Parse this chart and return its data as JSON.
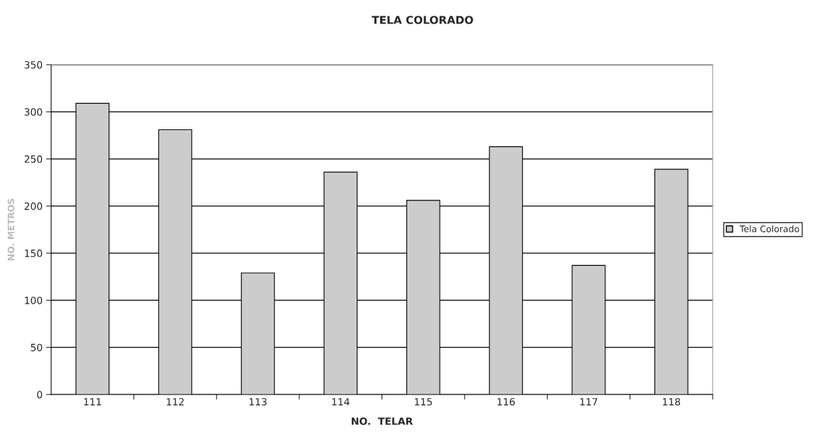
{
  "chart_data": {
    "type": "bar",
    "title": "TELA COLORADO",
    "xlabel": "NO.  TELAR",
    "ylabel": "NO. METROS",
    "categories": [
      "111",
      "112",
      "113",
      "114",
      "115",
      "116",
      "117",
      "118"
    ],
    "series": [
      {
        "name": "Tela Colorado",
        "color": "#cccccc",
        "values": [
          309,
          281,
          129,
          236,
          206,
          263,
          137,
          239
        ]
      }
    ],
    "ylim": [
      0,
      350
    ],
    "yticks": [
      0,
      50,
      100,
      150,
      200,
      250,
      300,
      350
    ],
    "grid": "y",
    "legend": "right"
  }
}
